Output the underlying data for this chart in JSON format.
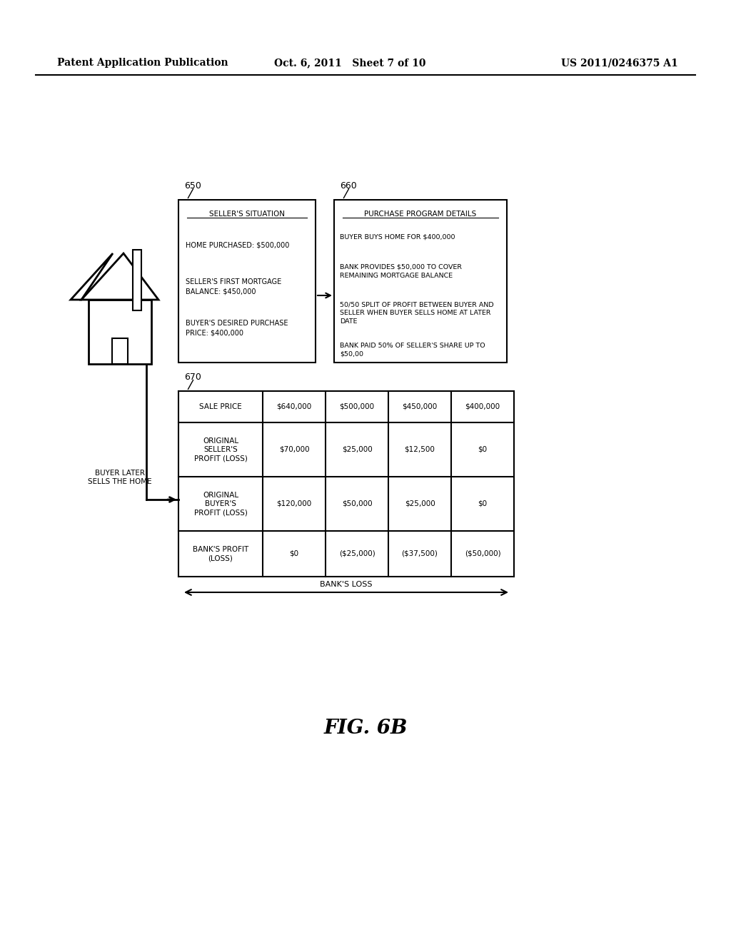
{
  "header_left": "Patent Application Publication",
  "header_mid": "Oct. 6, 2011   Sheet 7 of 10",
  "header_right": "US 2011/0246375 A1",
  "fig_label": "FIG. 6B",
  "box650_label": "650",
  "box650_title": "SELLER'S SITUATION",
  "box650_lines": [
    "HOME PURCHASED: $500,000",
    "SELLER'S FIRST MORTGAGE\nBALANCE: $450,000",
    "BUYER'S DESIRED PURCHASE\nPRICE: $400,000"
  ],
  "box660_label": "660",
  "box660_title": "PURCHASE PROGRAM DETAILS",
  "box660_lines": [
    "BUYER BUYS HOME FOR $400,000",
    "BANK PROVIDES $50,000 TO COVER\nREMAINING MORTGAGE BALANCE",
    "50/50 SPLIT OF PROFIT BETWEEN BUYER AND\nSELLER WHEN BUYER SELLS HOME AT LATER\nDATE",
    "BANK PAID 50% OF SELLER'S SHARE UP TO\n$50,00"
  ],
  "table_label": "670",
  "buyer_later_text": "BUYER LATER\nSELLS THE HOME",
  "table_headers": [
    "SALE PRICE",
    "$640,000",
    "$500,000",
    "$450,000",
    "$400,000"
  ],
  "table_row1_header": "ORIGINAL\nSELLER'S\nPROFIT (LOSS)",
  "table_row1_values": [
    "$70,000",
    "$25,000",
    "$12,500",
    "$0"
  ],
  "table_row2_header": "ORIGINAL\nBUYER'S\nPROFIT (LOSS)",
  "table_row2_values": [
    "$120,000",
    "$50,000",
    "$25,000",
    "$0"
  ],
  "table_row3_header": "BANK'S PROFIT\n(LOSS)",
  "table_row3_values": [
    "$0",
    "($25,000)",
    "($37,500)",
    "($50,000)"
  ],
  "banks_loss_label": "BANK'S LOSS",
  "bg_color": "#ffffff",
  "text_color": "#000000",
  "line_color": "#000000"
}
